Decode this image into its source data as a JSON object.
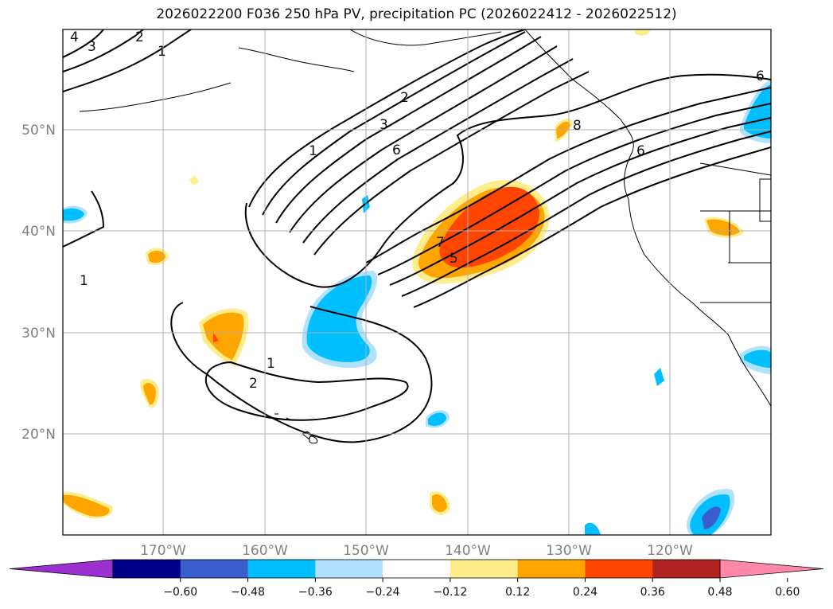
{
  "title": "2026022200 F036 250 hPa PV, precipitation PC (2026022412 - 2026022512)",
  "lat_labels": [
    "50°N",
    "40°N",
    "30°N",
    "20°N"
  ],
  "lon_labels": [
    "170°W",
    "160°W",
    "150°W",
    "140°W",
    "130°W",
    "120°W"
  ],
  "colorbar": {
    "ticks": [
      "−0.60",
      "−0.48",
      "−0.36",
      "−0.24",
      "−0.12",
      "0.12",
      "0.24",
      "0.36",
      "0.48",
      "0.60"
    ],
    "colors": [
      "#9b30d0",
      "#00008b",
      "#3a5fcd",
      "#00bfff",
      "#b0e2ff",
      "#ffffff",
      "#ffec8b",
      "#ffa500",
      "#ff4500",
      "#b22222",
      "#ff88aa"
    ]
  },
  "contour_labels": [
    "4",
    "3",
    "2",
    "1",
    "1",
    "2",
    "3",
    "6",
    "8",
    "6",
    "1",
    "2",
    "1",
    "7",
    "5",
    "6"
  ]
}
